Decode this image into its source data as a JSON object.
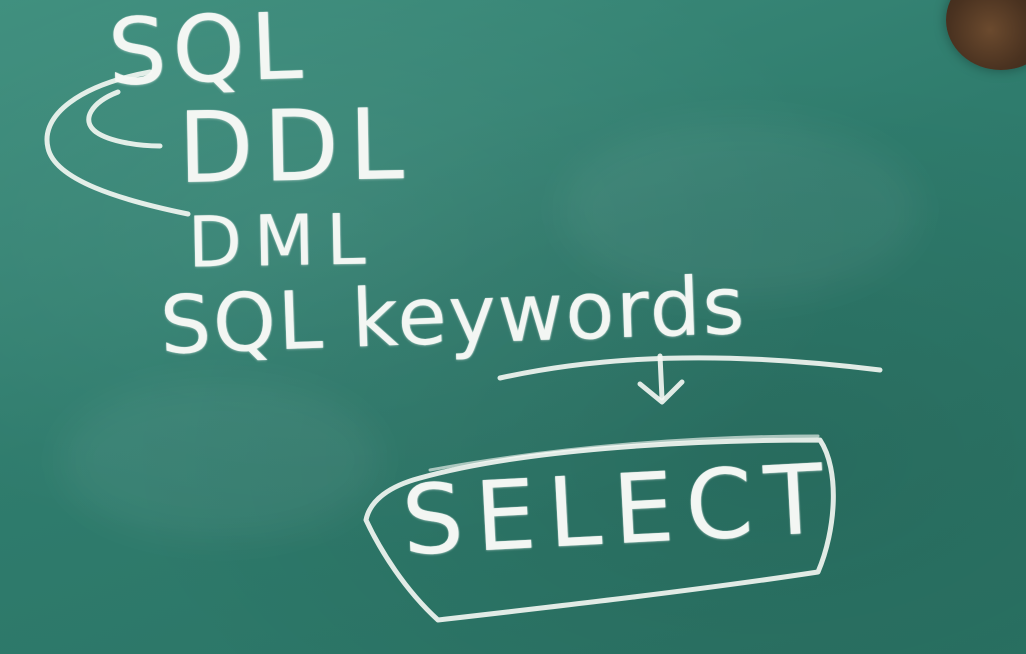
{
  "scene": "chalkboard",
  "colors": {
    "board": "#2f7c6d",
    "chalk": "#f5f8f4"
  },
  "board": {
    "terms": {
      "sql": "SQL",
      "ddl": "DDL",
      "dml": "DML",
      "keywords_phrase": "SQL keywords",
      "select": "SELECT"
    }
  },
  "strokes": {
    "bracket": "left-curved-bracket",
    "underline": "underline",
    "arrow": "down-arrow",
    "box": "rounded-box"
  }
}
